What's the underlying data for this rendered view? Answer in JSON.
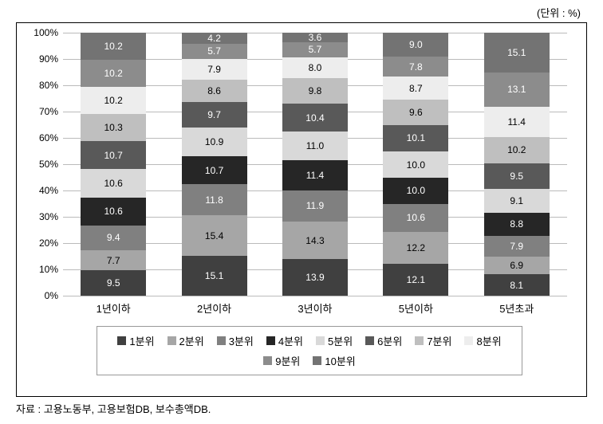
{
  "unit_label": "(단위 : %)",
  "source": "자료 : 고용노동부, 고용보험DB, 보수총액DB.",
  "chart": {
    "type": "stacked-bar",
    "categories": [
      "1년이하",
      "2년이하",
      "3년이하",
      "5년이하",
      "5년초과"
    ],
    "y_ticks": [
      0,
      10,
      20,
      30,
      40,
      50,
      60,
      70,
      80,
      90,
      100
    ],
    "y_tick_suffix": "%",
    "series": [
      {
        "name": "1분위",
        "color": "#404040",
        "text": "light"
      },
      {
        "name": "2분위",
        "color": "#a6a6a6",
        "text": "dark"
      },
      {
        "name": "3분위",
        "color": "#808080",
        "text": "light"
      },
      {
        "name": "4분위",
        "color": "#262626",
        "text": "light"
      },
      {
        "name": "5분위",
        "color": "#d9d9d9",
        "text": "dark"
      },
      {
        "name": "6분위",
        "color": "#595959",
        "text": "light"
      },
      {
        "name": "7분위",
        "color": "#bfbfbf",
        "text": "dark"
      },
      {
        "name": "8분위",
        "color": "#ededed",
        "text": "dark"
      },
      {
        "name": "9분위",
        "color": "#8c8c8c",
        "text": "light"
      },
      {
        "name": "10분위",
        "color": "#737373",
        "text": "light"
      }
    ],
    "data": [
      [
        9.5,
        7.7,
        9.4,
        10.6,
        10.6,
        10.7,
        10.3,
        10.2,
        10.2,
        10.2
      ],
      [
        15.1,
        15.4,
        11.8,
        10.7,
        10.9,
        9.7,
        8.6,
        7.9,
        5.7,
        4.2
      ],
      [
        13.9,
        14.3,
        11.9,
        11.4,
        11.0,
        10.4,
        9.8,
        8.0,
        5.7,
        3.6
      ],
      [
        12.1,
        12.2,
        10.6,
        10.0,
        10.0,
        10.1,
        9.6,
        8.7,
        7.8,
        9.0
      ],
      [
        8.1,
        6.9,
        7.9,
        8.8,
        9.1,
        9.5,
        10.2,
        11.4,
        13.1,
        15.1
      ]
    ],
    "grid_color": "#bbbbbb",
    "background_color": "#ffffff"
  }
}
